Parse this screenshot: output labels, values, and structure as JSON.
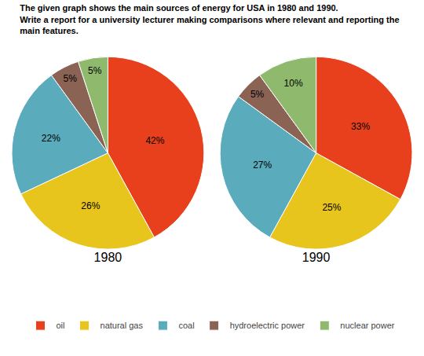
{
  "title": "The given graph shows the main sources of energy for USA in 1980 and 1990.\nWrite a report for a university lecturer making comparisons where relevant and reporting the\nmain features.",
  "chart_data": [
    {
      "type": "pie",
      "title": "1980",
      "categories": [
        "oil",
        "natural gas",
        "coal",
        "hydroelectric power",
        "nuclear power"
      ],
      "values": [
        42,
        26,
        22,
        5,
        5
      ],
      "value_labels": [
        "42%",
        "26%",
        "22%",
        "5%",
        "5%"
      ],
      "colors": [
        "#e8401c",
        "#e8c51c",
        "#5aabbc",
        "#8B6355",
        "#8fba6e"
      ],
      "data_labels": true,
      "legend": "bottom"
    },
    {
      "type": "pie",
      "title": "1990",
      "categories": [
        "oil",
        "natural gas",
        "coal",
        "hydroelectric power",
        "nuclear power"
      ],
      "values": [
        33,
        25,
        27,
        5,
        10
      ],
      "value_labels": [
        "33%",
        "25%",
        "27%",
        "5%",
        "10%"
      ],
      "colors": [
        "#e8401c",
        "#e8c51c",
        "#5aabbc",
        "#8B6355",
        "#8fba6e"
      ],
      "data_labels": true,
      "legend": "bottom"
    }
  ]
}
